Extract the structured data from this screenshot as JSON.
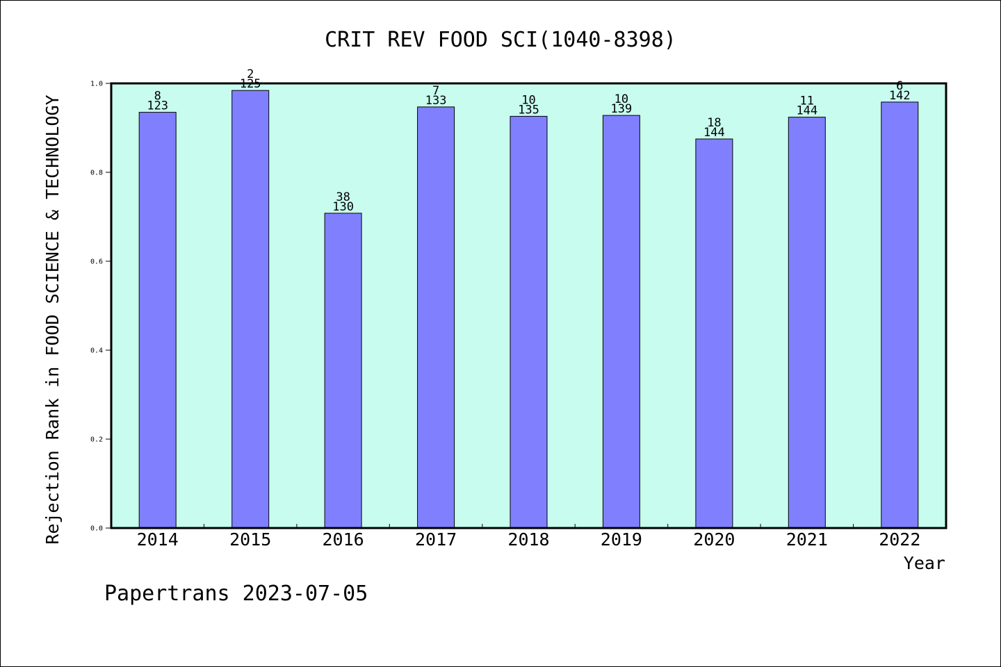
{
  "chart_data": {
    "type": "bar",
    "title": "CRIT REV FOOD SCI(1040-8398)",
    "xlabel": "Year",
    "ylabel": "Rejection Rank in FOOD SCIENCE & TECHNOLOGY",
    "ylim": [
      0.0,
      1.0
    ],
    "yticks": [
      "0.0",
      "0.2",
      "0.4",
      "0.6",
      "0.8",
      "1.0"
    ],
    "categories": [
      "2014",
      "2015",
      "2016",
      "2017",
      "2018",
      "2019",
      "2020",
      "2021",
      "2022"
    ],
    "values": [
      0.935,
      0.984,
      0.708,
      0.947,
      0.926,
      0.928,
      0.875,
      0.924,
      0.958
    ],
    "labels_top": [
      "8",
      "2",
      "38",
      "7",
      "10",
      "10",
      "18",
      "11",
      "6"
    ],
    "labels_bottom": [
      "123",
      "125",
      "130",
      "133",
      "135",
      "139",
      "144",
      "144",
      "142"
    ],
    "grid": false,
    "colors": {
      "plot_background": "#c8fcef",
      "bar_fill": "#8080ff",
      "bar_stroke": "#000000"
    }
  },
  "footer": {
    "source": "Papertrans 2023-07-05"
  }
}
